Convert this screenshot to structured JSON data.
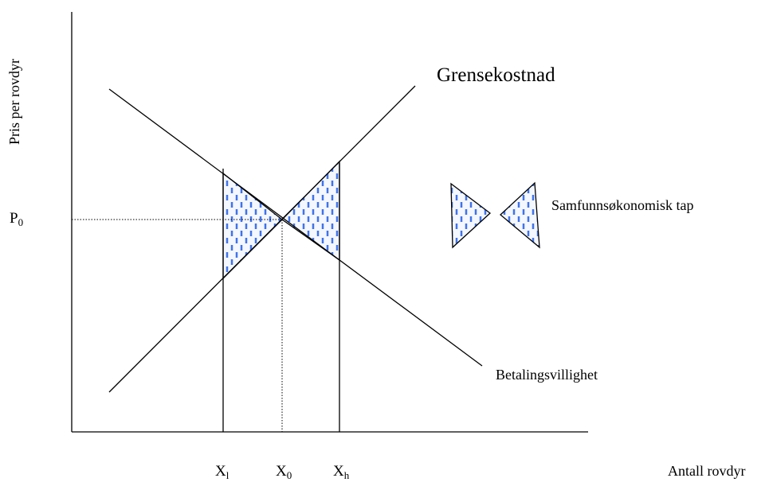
{
  "y_axis_label": "Pris per rovdyr",
  "x_axis_label": "Antall rovdyr",
  "price_label": {
    "main": "P",
    "sub": "0"
  },
  "x_labels": [
    {
      "main": "X",
      "sub": "l"
    },
    {
      "main": "X",
      "sub": "0"
    },
    {
      "main": "X",
      "sub": "h"
    }
  ],
  "supply_label": "Grensekostnad",
  "demand_label": "Betalingsvillighet",
  "legend_label": "Samfunnsøkonomisk tap"
}
